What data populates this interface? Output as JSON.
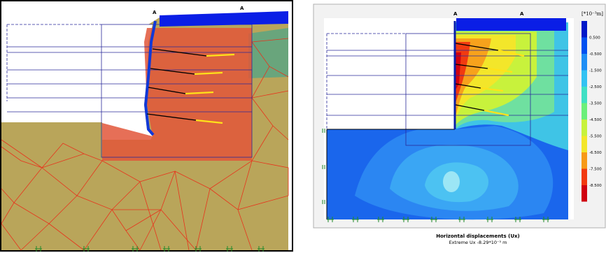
{
  "left_view": {
    "section_label_1": "A",
    "section_label_2": "A"
  },
  "right_view": {
    "section_label_1": "A",
    "section_label_2": "A",
    "legend": {
      "unit_label": "[*10⁻³m]",
      "values": [
        "0.500",
        "-0.500",
        "-1.500",
        "-2.500",
        "-3.500",
        "-4.500",
        "-5.500",
        "-6.500",
        "-7.500",
        "-8.500"
      ],
      "colors": [
        "#0018c8",
        "#0050f0",
        "#1e8ef5",
        "#32c2f2",
        "#3fe0c4",
        "#6cef7a",
        "#c8f23c",
        "#f3e62a",
        "#f79a18",
        "#f13a10",
        "#d00010"
      ]
    },
    "caption_title": "Horizontal displacements (Ux)",
    "caption_extreme": "Extreme Ux -8.29*10⁻³ m"
  },
  "colors": {
    "mesh_line": "#e8331c",
    "soil_fill": "#b9a55a",
    "wall": "#1038d8",
    "anchor_grout": "#ffe21a",
    "contour_bg": "#1a66ec"
  }
}
